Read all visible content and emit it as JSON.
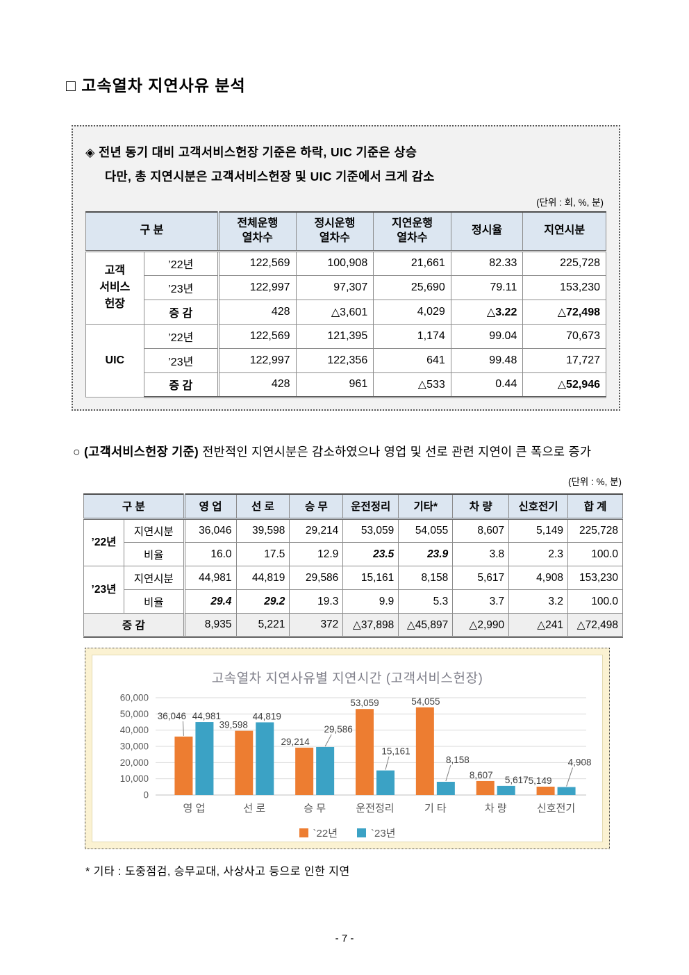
{
  "page": {
    "title": "□ 고속열차 지연사유 분석",
    "page_number": "- 7 -"
  },
  "highlight_box": {
    "bullet": "◈",
    "line1": "전년 동기 대비 고객서비스헌장 기준은 하락, UIC 기준은 상승",
    "line2": "다만, 총 지연시분은 고객서비스헌장 및 UIC 기준에서 크게 감소",
    "unit_note": "(단위 : 회, %, 분)"
  },
  "table1": {
    "headers": [
      "구 분",
      "전체운행\n열차수",
      "정시운행\n열차수",
      "지연운행\n열차수",
      "정시율",
      "지연시분"
    ],
    "groups": [
      {
        "name": "고객\n서비스\n헌장",
        "rows": [
          {
            "label": "’22년",
            "cells": [
              "122,569",
              "100,908",
              "21,661",
              "82.33",
              "225,728"
            ]
          },
          {
            "label": "’23년",
            "cells": [
              "122,997",
              "97,307",
              "25,690",
              "79.11",
              "153,230"
            ]
          },
          {
            "label": "증 감",
            "cells": [
              "428",
              "△3,601",
              "4,029",
              {
                "v": "△3.22",
                "b": true
              },
              {
                "v": "△72,498",
                "b": true
              }
            ]
          }
        ]
      },
      {
        "name": "UIC",
        "rows": [
          {
            "label": "’22년",
            "cells": [
              "122,569",
              "121,395",
              "1,174",
              "99.04",
              "70,673"
            ]
          },
          {
            "label": "’23년",
            "cells": [
              "122,997",
              "122,356",
              "641",
              "99.48",
              "17,727"
            ]
          },
          {
            "label": "증 감",
            "cells": [
              "428",
              "961",
              "△533",
              "0.44",
              {
                "v": "△52,946",
                "b": true
              }
            ]
          }
        ]
      }
    ]
  },
  "paragraph": {
    "bullet": "○",
    "bold_text": "(고객서비스헌장 기준)",
    "text": "전반적인 지연시분은 감소하였으나 영업 및 선로 관련 지연이 큰 폭으로 증가"
  },
  "table2": {
    "unit_note": "(단위 : %, 분)",
    "headers": [
      "구 분",
      "영 업",
      "선 로",
      "승 무",
      "운전정리",
      "기타*",
      "차 량",
      "신호전기",
      "합 계"
    ],
    "groups": [
      {
        "name": "’22년",
        "rows": [
          {
            "label": "지연시분",
            "cells": [
              "36,046",
              "39,598",
              "29,214",
              "53,059",
              "54,055",
              "8,607",
              "5,149",
              "225,728"
            ]
          },
          {
            "label": "비율",
            "cells": [
              "16.0",
              "17.5",
              "12.9",
              {
                "v": "23.5",
                "bi": true
              },
              {
                "v": "23.9",
                "bi": true
              },
              "3.8",
              "2.3",
              "100.0"
            ]
          }
        ]
      },
      {
        "name": "’23년",
        "rows": [
          {
            "label": "지연시분",
            "cells": [
              "44,981",
              "44,819",
              "29,586",
              "15,161",
              "8,158",
              "5,617",
              "4,908",
              "153,230"
            ]
          },
          {
            "label": "비율",
            "cells": [
              {
                "v": "29.4",
                "bi": true
              },
              {
                "v": "29.2",
                "bi": true
              },
              "19.3",
              "9.9",
              "5.3",
              "3.7",
              "3.2",
              "100.0"
            ]
          }
        ]
      }
    ],
    "total_row": {
      "label": "증 감",
      "cells": [
        "8,935",
        "5,221",
        "372",
        "△37,898",
        "△45,897",
        "△2,990",
        "△241",
        "△72,498"
      ]
    }
  },
  "chart_data": {
    "type": "bar",
    "title": "고속열차 지연사유별 지연시간 (고객서비스헌장)",
    "categories": [
      "영 업",
      "선 로",
      "승 무",
      "운전정리",
      "기 타",
      "차 량",
      "신호전기"
    ],
    "series": [
      {
        "name": "`22년",
        "color": "#ED7D31",
        "values": [
          36046,
          39598,
          29214,
          53059,
          54055,
          8607,
          5149
        ],
        "labels": [
          "36,046",
          "39,598",
          "29,214",
          "53,059",
          "54,055",
          "8,607",
          "5,149"
        ]
      },
      {
        "name": "`23년",
        "color": "#3BA2C5",
        "values": [
          44981,
          44819,
          29586,
          15161,
          8158,
          5617,
          4908
        ],
        "labels": [
          "44,981",
          "44,819",
          "29,586",
          "15,161",
          "8,158",
          "5,617",
          "4,908"
        ]
      }
    ],
    "ylim": [
      0,
      60000
    ],
    "yticks": [
      "0",
      "10,000",
      "20,000",
      "30,000",
      "40,000",
      "50,000",
      "60,000"
    ],
    "xlabel": "",
    "ylabel": "",
    "legend_position": "bottom",
    "grid": true
  },
  "footnote": "* 기타 : 도중점검, 승무교대, 사상사고 등으로 인한 지연"
}
